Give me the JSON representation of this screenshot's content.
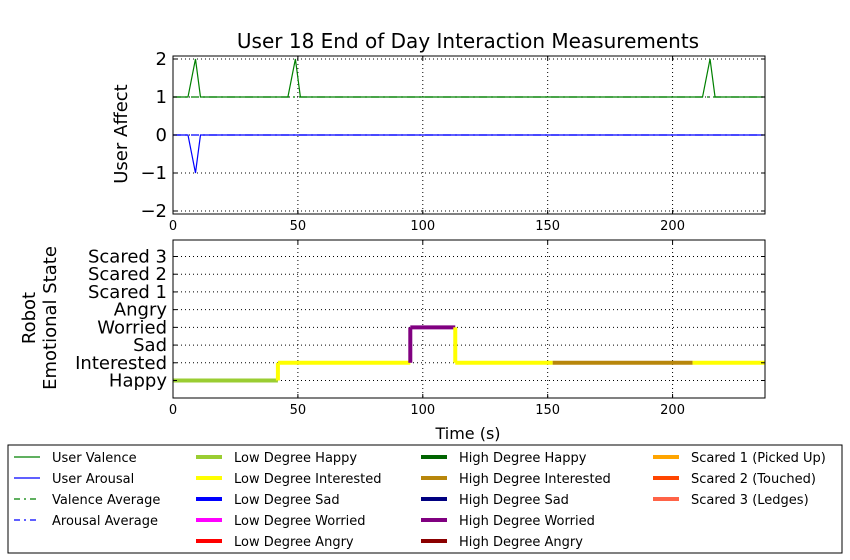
{
  "chart_data": [
    {
      "type": "line",
      "title": "User 18 End of Day Interaction Measurements",
      "ylabel": "User Affect",
      "xlim": [
        0,
        237
      ],
      "ylim": [
        -2,
        2
      ],
      "xticks": [
        "0",
        "50",
        "100",
        "150",
        "200"
      ],
      "yticks": [
        "2",
        "1",
        "0",
        "−1",
        "−2"
      ],
      "grid": true,
      "series": [
        {
          "name": "User Valence",
          "color": "#008000",
          "style": "solid",
          "x": [
            0,
            6,
            9,
            11,
            46,
            49,
            51,
            212,
            215,
            217,
            237
          ],
          "y": [
            1,
            1,
            2,
            1,
            1,
            2,
            1,
            1,
            2,
            1,
            1
          ]
        },
        {
          "name": "User Arousal",
          "color": "#0000ff",
          "style": "solid",
          "x": [
            0,
            6,
            9,
            11,
            237
          ],
          "y": [
            0,
            0,
            -1,
            0,
            0
          ]
        },
        {
          "name": "Valence Average",
          "color": "#008000",
          "style": "dashdot",
          "x": [
            0,
            237
          ],
          "y": [
            1,
            1
          ]
        },
        {
          "name": "Arousal Average",
          "color": "#0000ff",
          "style": "dashdot",
          "x": [
            0,
            237
          ],
          "y": [
            0,
            0
          ]
        }
      ]
    },
    {
      "type": "line",
      "xlabel": "Time (s)",
      "ylabel": [
        "Robot",
        "Emotional State"
      ],
      "xlim": [
        0,
        237
      ],
      "xticks": [
        "0",
        "50",
        "100",
        "150",
        "200"
      ],
      "categories": [
        "Happy",
        "Interested",
        "Sad",
        "Worried",
        "Angry",
        "Scared 1",
        "Scared 2",
        "Scared 3"
      ],
      "grid": true,
      "segments": [
        {
          "series": "Low Degree Happy",
          "x": [
            0,
            42
          ],
          "level": "Happy"
        },
        {
          "series": "Low Degree Interested",
          "x": [
            42,
            95
          ],
          "level": "Interested"
        },
        {
          "series": "High Degree Worried",
          "x": [
            95,
            113
          ],
          "level": "Worried"
        },
        {
          "series": "Low Degree Interested",
          "x": [
            113,
            152
          ],
          "level": "Interested"
        },
        {
          "series": "High Degree Interested",
          "x": [
            152,
            208
          ],
          "level": "Interested"
        },
        {
          "series": "Low Degree Interested",
          "x": [
            208,
            237
          ],
          "level": "Interested"
        }
      ]
    }
  ],
  "legend": {
    "placement": "bottom",
    "columns": [
      [
        {
          "label": "User Valence",
          "color": "#008000",
          "style": "thin"
        },
        {
          "label": "User Arousal",
          "color": "#0000ff",
          "style": "thin"
        },
        {
          "label": "Valence Average",
          "color": "#008000",
          "style": "dashdot"
        },
        {
          "label": "Arousal Average",
          "color": "#0000ff",
          "style": "dashdot"
        }
      ],
      [
        {
          "label": "Low Degree Happy",
          "color": "#9acd32",
          "style": "thick"
        },
        {
          "label": "Low Degree Interested",
          "color": "#ffff00",
          "style": "thick"
        },
        {
          "label": "Low Degree Sad",
          "color": "#0000ff",
          "style": "thick"
        },
        {
          "label": "Low Degree Worried",
          "color": "#ff00ff",
          "style": "thick"
        },
        {
          "label": "Low Degree Angry",
          "color": "#ff0000",
          "style": "thick"
        }
      ],
      [
        {
          "label": "High Degree Happy",
          "color": "#006400",
          "style": "thick"
        },
        {
          "label": "High Degree Interested",
          "color": "#b8860b",
          "style": "thick"
        },
        {
          "label": "High Degree Sad",
          "color": "#000080",
          "style": "thick"
        },
        {
          "label": "High Degree Worried",
          "color": "#800080",
          "style": "thick"
        },
        {
          "label": "High Degree Angry",
          "color": "#8b0000",
          "style": "thick"
        }
      ],
      [
        {
          "label": "Scared 1 (Picked Up)",
          "color": "#ffa500",
          "style": "thick"
        },
        {
          "label": "Scared 2 (Touched)",
          "color": "#ff4500",
          "style": "thick"
        },
        {
          "label": "Scared 3 (Ledges)",
          "color": "#ff6347",
          "style": "thick"
        }
      ]
    ]
  }
}
